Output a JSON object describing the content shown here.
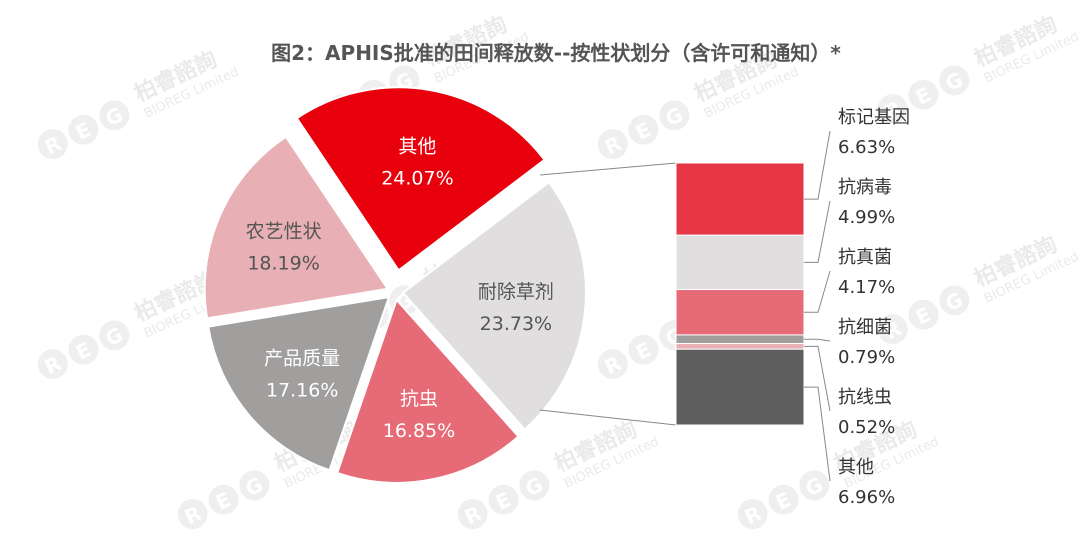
{
  "watermark": {
    "logo": "REG",
    "brand_cn": "柏睿諮詢",
    "brand_en": "BIOREG Limited"
  },
  "chart_data": [
    {
      "type": "pie",
      "title": "图2：APHIS批准的田间释放数--按性状划分（含许可和通知）*",
      "slices": [
        {
          "label": "其他",
          "value": 24.07,
          "value_label": "24.07%",
          "color": "#e8000d",
          "text_color": "#ffffff",
          "exploded": true
        },
        {
          "label": "耐除草剂",
          "value": 23.73,
          "value_label": "23.73%",
          "color": "#e0dede",
          "text_color": "#555555",
          "exploded": false
        },
        {
          "label": "抗虫",
          "value": 16.85,
          "value_label": "16.85%",
          "color": "#e66b76",
          "text_color": "#ffffff",
          "exploded": false
        },
        {
          "label": "产品质量",
          "value": 17.16,
          "value_label": "17.16%",
          "color": "#a19e9e",
          "text_color": "#ffffff",
          "exploded": false
        },
        {
          "label": "农艺性状",
          "value": 18.19,
          "value_label": "18.19%",
          "color": "#e8b0b4",
          "text_color": "#555555",
          "exploded": false
        }
      ]
    },
    {
      "type": "bar",
      "stacked": true,
      "breakdown_of": "其他",
      "segments": [
        {
          "label": "标记基因",
          "value": 6.63,
          "value_label": "6.63%",
          "color": "#e63645"
        },
        {
          "label": "抗病毒",
          "value": 4.99,
          "value_label": "4.99%",
          "color": "#e0dede"
        },
        {
          "label": "抗真菌",
          "value": 4.17,
          "value_label": "4.17%",
          "color": "#e66b76"
        },
        {
          "label": "抗细菌",
          "value": 0.79,
          "value_label": "0.79%",
          "color": "#a19e9e"
        },
        {
          "label": "抗线虫",
          "value": 0.52,
          "value_label": "0.52%",
          "color": "#e8b0b4"
        },
        {
          "label": "其他",
          "value": 6.96,
          "value_label": "6.96%",
          "color": "#5e5e5e"
        }
      ]
    }
  ]
}
